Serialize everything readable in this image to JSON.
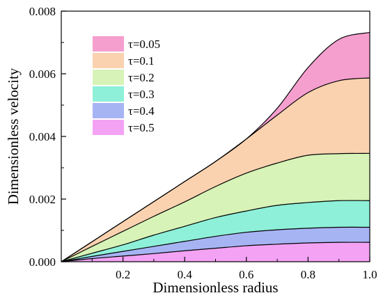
{
  "chart_data": {
    "type": "area",
    "xlabel": "Dimensionless radius",
    "ylabel": "Dimensionless velocity",
    "xlim": [
      0.0,
      1.0
    ],
    "ylim": [
      0.0,
      0.008
    ],
    "xticks": [
      0.2,
      0.4,
      0.6,
      0.8,
      1.0
    ],
    "xtick_labels": [
      "0.2",
      "0.4",
      "0.6",
      "0.8",
      "1.0"
    ],
    "yticks": [
      0.0,
      0.002,
      0.004,
      0.006,
      0.008
    ],
    "ytick_labels": [
      "0.000",
      "0.002",
      "0.004",
      "0.006",
      "0.008"
    ],
    "grid": false,
    "legend_position": "top-left",
    "x": [
      0.0,
      0.1,
      0.2,
      0.3,
      0.4,
      0.5,
      0.6,
      0.7,
      0.8,
      0.9,
      1.0
    ],
    "series": [
      {
        "name": "τ=0.05",
        "color": "#f59fce",
        "values": [
          0.0,
          0.00064,
          0.00128,
          0.00192,
          0.00256,
          0.0032,
          0.00392,
          0.0049,
          0.0062,
          0.0071,
          0.00732
        ]
      },
      {
        "name": "τ=0.1",
        "color": "#fad2b0",
        "values": [
          0.0,
          0.00064,
          0.00128,
          0.00192,
          0.00256,
          0.0032,
          0.00392,
          0.00468,
          0.0054,
          0.00578,
          0.00587
        ]
      },
      {
        "name": "τ=0.2",
        "color": "#d7f3b7",
        "values": [
          0.0,
          0.00049,
          0.00097,
          0.00145,
          0.00191,
          0.0024,
          0.00283,
          0.00315,
          0.0034,
          0.00345,
          0.00346
        ]
      },
      {
        "name": "τ=0.3",
        "color": "#8ef0d9",
        "values": [
          0.0,
          0.00027,
          0.00054,
          0.00085,
          0.00113,
          0.00141,
          0.00162,
          0.0018,
          0.00189,
          0.00195,
          0.00195
        ]
      },
      {
        "name": "τ=0.4",
        "color": "#a7b4f4",
        "values": [
          0.0,
          0.00017,
          0.00033,
          0.00049,
          0.00065,
          0.00081,
          0.00094,
          0.00102,
          0.00107,
          0.0011,
          0.0011
        ]
      },
      {
        "name": "τ=0.5",
        "color": "#f3a2f4",
        "values": [
          0.0,
          0.0001,
          0.00018,
          0.00026,
          0.00035,
          0.00043,
          0.00051,
          0.00056,
          0.0006,
          0.00062,
          0.00062
        ]
      }
    ]
  }
}
